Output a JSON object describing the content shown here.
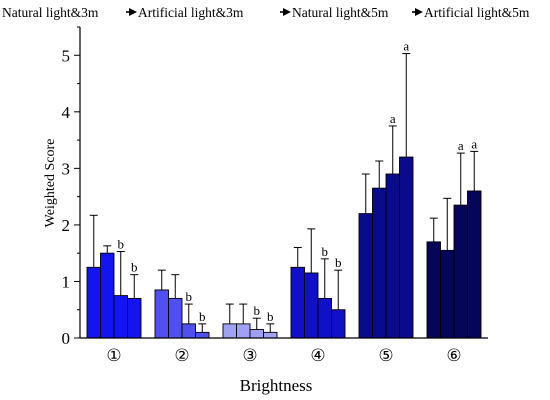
{
  "chart_data": {
    "type": "bar",
    "title": "",
    "legend": {
      "labels": [
        "Natural light&3m",
        "Artificial light&3m",
        "Natural light&5m",
        "Artificial light&5m"
      ],
      "placement": "top",
      "separator": "arrow"
    },
    "xlabel": "Brightness",
    "ylabel": "Weighted Score",
    "ylim": [
      0,
      5.5
    ],
    "yticks": [
      "0",
      "1",
      "2",
      "3",
      "4",
      "5"
    ],
    "categories": [
      "①",
      "②",
      "③",
      "④",
      "⑤",
      "⑥"
    ],
    "category_colors": [
      "#1414f0",
      "#5050f0",
      "#a0a0f5",
      "#1010c8",
      "#0a0a8c",
      "#05055a"
    ],
    "series": [
      {
        "name": "Natural light&3m",
        "values": [
          1.25,
          0.85,
          0.25,
          1.25,
          2.2,
          1.7
        ],
        "errors": [
          0.92,
          0.35,
          0.35,
          0.35,
          0.7,
          0.42
        ]
      },
      {
        "name": "Artificial light&3m",
        "values": [
          1.5,
          0.7,
          0.25,
          1.15,
          2.65,
          1.55
        ],
        "errors": [
          0.13,
          0.42,
          0.35,
          0.78,
          0.48,
          0.92
        ]
      },
      {
        "name": "Natural light&5m",
        "values": [
          0.75,
          0.25,
          0.15,
          0.7,
          2.9,
          2.35
        ],
        "errors": [
          0.78,
          0.35,
          0.2,
          0.7,
          0.85,
          0.92
        ]
      },
      {
        "name": "Artificial light&5m",
        "values": [
          0.7,
          0.1,
          0.1,
          0.5,
          3.2,
          2.6
        ],
        "errors": [
          0.42,
          0.15,
          0.15,
          0.7,
          1.83,
          0.7
        ]
      }
    ],
    "annotations": [
      {
        "category": 0,
        "series": 2,
        "text": "b"
      },
      {
        "category": 0,
        "series": 3,
        "text": "b"
      },
      {
        "category": 1,
        "series": 2,
        "text": "b"
      },
      {
        "category": 1,
        "series": 3,
        "text": "b"
      },
      {
        "category": 2,
        "series": 2,
        "text": "b"
      },
      {
        "category": 2,
        "series": 3,
        "text": "b"
      },
      {
        "category": 3,
        "series": 2,
        "text": "b"
      },
      {
        "category": 3,
        "series": 3,
        "text": "b"
      },
      {
        "category": 4,
        "series": 2,
        "text": "a"
      },
      {
        "category": 4,
        "series": 3,
        "text": "a"
      },
      {
        "category": 5,
        "series": 2,
        "text": "a"
      },
      {
        "category": 5,
        "series": 3,
        "text": "a"
      }
    ],
    "grid": false
  }
}
